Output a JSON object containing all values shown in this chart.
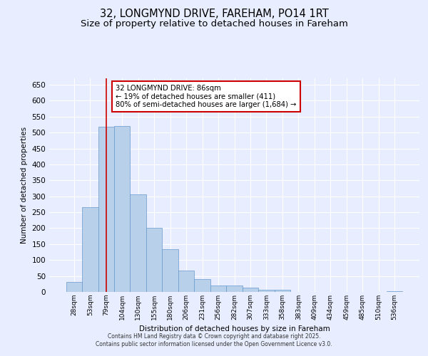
{
  "title1": "32, LONGMYND DRIVE, FAREHAM, PO14 1RT",
  "title2": "Size of property relative to detached houses in Fareham",
  "xlabel": "Distribution of detached houses by size in Fareham",
  "ylabel": "Number of detached properties",
  "bar_labels": [
    "28sqm",
    "53sqm",
    "79sqm",
    "104sqm",
    "130sqm",
    "155sqm",
    "180sqm",
    "206sqm",
    "231sqm",
    "256sqm",
    "282sqm",
    "307sqm",
    "333sqm",
    "358sqm",
    "383sqm",
    "409sqm",
    "434sqm",
    "459sqm",
    "485sqm",
    "510sqm",
    "536sqm"
  ],
  "bar_values": [
    32,
    265,
    518,
    520,
    305,
    200,
    133,
    68,
    40,
    21,
    20,
    14,
    7,
    7,
    0,
    1,
    0,
    0,
    0,
    0,
    3
  ],
  "bar_color": "#b8d0ea",
  "bar_edge_color": "#6699cc",
  "vline_x": 2.0,
  "vline_color": "#cc0000",
  "ylim": [
    0,
    670
  ],
  "yticks": [
    0,
    50,
    100,
    150,
    200,
    250,
    300,
    350,
    400,
    450,
    500,
    550,
    600,
    650
  ],
  "annotation_title": "32 LONGMYND DRIVE: 86sqm",
  "annotation_line1": "← 19% of detached houses are smaller (411)",
  "annotation_line2": "80% of semi-detached houses are larger (1,684) →",
  "annotation_box_color": "#ffffff",
  "annotation_box_edge": "#cc0000",
  "footer1": "Contains HM Land Registry data © Crown copyright and database right 2025.",
  "footer2": "Contains public sector information licensed under the Open Government Licence v3.0.",
  "bg_color": "#e8eeff",
  "grid_color": "#ffffff",
  "title_fontsize": 10.5,
  "subtitle_fontsize": 9.5
}
